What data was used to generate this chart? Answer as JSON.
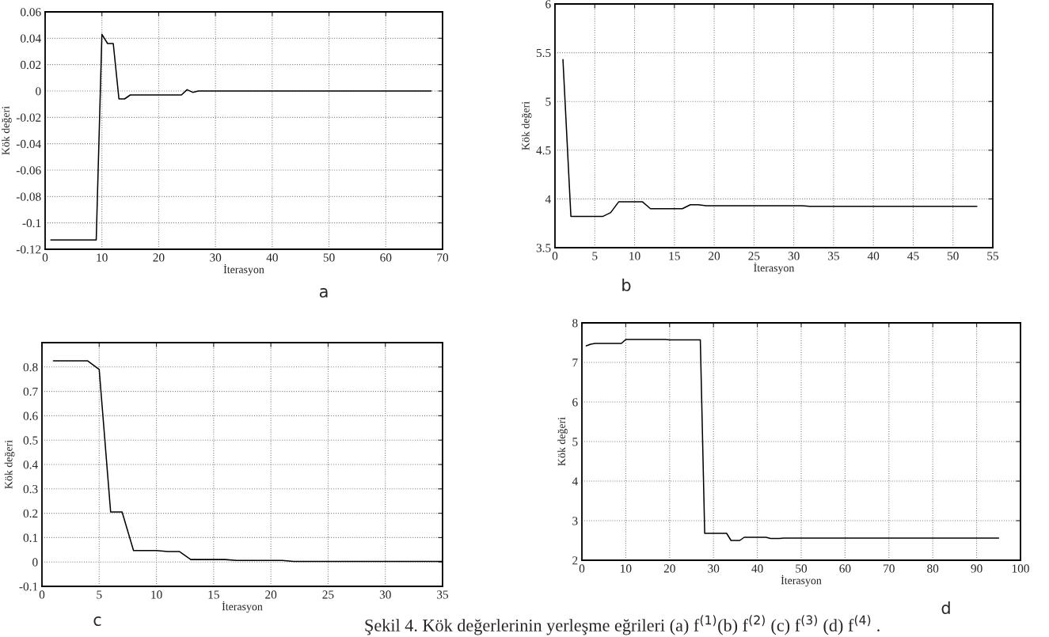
{
  "chart_data": [
    {
      "type": "line",
      "xlabel": "İterasyon",
      "ylabel": "Kök değeri",
      "annotations": [
        "a"
      ],
      "grid": true,
      "xlim": [
        0,
        70
      ],
      "xticks": [
        0,
        10,
        20,
        30,
        40,
        50,
        60,
        70
      ],
      "ylim": [
        -0.12,
        0.06
      ],
      "yticks": [
        -0.12,
        -0.1,
        -0.08,
        -0.06,
        -0.04,
        -0.02,
        0,
        0.02,
        0.04,
        0.06
      ],
      "series": [
        {
          "color": "#000000",
          "x": [
            1,
            9,
            10,
            11,
            12,
            13,
            14,
            15,
            17,
            24,
            25,
            26,
            27,
            68
          ],
          "values": [
            -0.113,
            -0.113,
            0.043,
            0.036,
            0.036,
            -0.006,
            -0.006,
            -0.003,
            -0.003,
            -0.003,
            0.001,
            -0.001,
            0,
            0
          ]
        }
      ]
    },
    {
      "type": "line",
      "xlabel": "İterasyon",
      "ylabel": "Kök değeri",
      "annotations": [
        "b"
      ],
      "grid": true,
      "xlim": [
        0,
        55
      ],
      "xticks": [
        0,
        5,
        10,
        15,
        20,
        25,
        30,
        35,
        40,
        45,
        50,
        55
      ],
      "ylim": [
        3.5,
        6
      ],
      "yticks": [
        3.5,
        4,
        4.5,
        5,
        5.5,
        6
      ],
      "series": [
        {
          "color": "#000000",
          "x": [
            1,
            2,
            6,
            7,
            8,
            11,
            12,
            16,
            17,
            18,
            19,
            31,
            32,
            53
          ],
          "values": [
            5.43,
            3.82,
            3.82,
            3.86,
            3.97,
            3.97,
            3.9,
            3.9,
            3.94,
            3.94,
            3.93,
            3.93,
            3.925,
            3.925
          ]
        }
      ]
    },
    {
      "type": "line",
      "xlabel": "İterasyon",
      "ylabel": "Kök değeri",
      "annotations": [
        "c"
      ],
      "grid": true,
      "xlim": [
        0,
        35
      ],
      "xticks": [
        0,
        5,
        10,
        15,
        20,
        25,
        30,
        35
      ],
      "ylim": [
        -0.1,
        0.9
      ],
      "yticks": [
        -0.1,
        0,
        0.1,
        0.2,
        0.3,
        0.4,
        0.5,
        0.6,
        0.7,
        0.8,
        {
          "value": 0.9,
          "label": null
        }
      ],
      "series": [
        {
          "color": "#000000",
          "x": [
            1,
            4,
            5,
            6,
            7,
            8,
            10,
            11,
            12,
            13,
            16,
            17,
            21,
            22,
            35
          ],
          "values": [
            0.825,
            0.825,
            0.79,
            0.205,
            0.205,
            0.047,
            0.047,
            0.043,
            0.043,
            0.01,
            0.01,
            0.006,
            0.006,
            0.002,
            0.002
          ]
        }
      ]
    },
    {
      "type": "line",
      "xlabel": "İterasyon",
      "ylabel": "Kök değeri",
      "annotations": [
        "d",
        "Şekil 4. Kök değerlerinin yerleşme eğrileri (a) f$^{(1)}$(b) f$^{(2)}$ (c) f$^{(3)}$ (d) f$^{(4)}$ ."
      ],
      "grid": true,
      "xlim": [
        0,
        100
      ],
      "xticks": [
        0,
        10,
        20,
        30,
        40,
        50,
        60,
        70,
        80,
        90,
        100
      ],
      "ylim": [
        2,
        8
      ],
      "yticks": [
        2,
        3,
        4,
        5,
        6,
        7,
        8
      ],
      "series": [
        {
          "color": "#000000",
          "x": [
            1,
            2,
            3,
            9,
            10,
            19,
            20,
            27,
            28,
            33,
            34,
            36,
            37,
            42,
            43,
            45,
            46,
            95
          ],
          "values": [
            7.42,
            7.46,
            7.48,
            7.48,
            7.58,
            7.58,
            7.57,
            7.57,
            2.68,
            2.68,
            2.5,
            2.5,
            2.58,
            2.58,
            2.55,
            2.55,
            2.56,
            2.56
          ]
        }
      ]
    }
  ]
}
